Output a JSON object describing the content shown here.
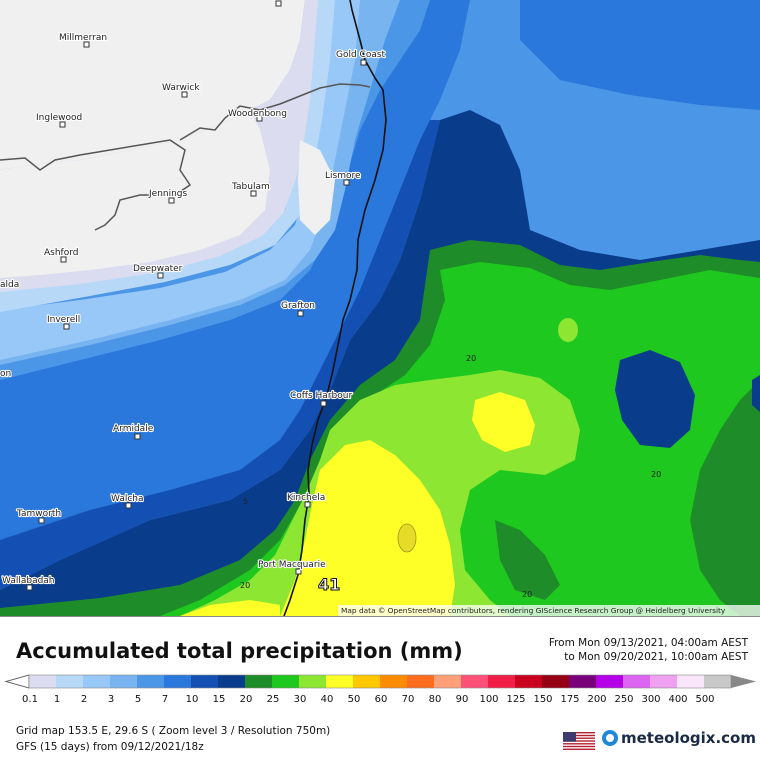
{
  "map": {
    "attribution": "Map data © OpenStreetMap contributors, rendering GIScience Research Group @ Heidelberg University",
    "max_marker": "41",
    "contour_label": "20",
    "contour_label_5": "5",
    "cities": [
      {
        "name": "Millmerran"
      },
      {
        "name": "Warwick"
      },
      {
        "name": "Inglewood"
      },
      {
        "name": "Woodenbong"
      },
      {
        "name": "Gold Coast"
      },
      {
        "name": "Lismore"
      },
      {
        "name": "Tabulam"
      },
      {
        "name": "Jennings"
      },
      {
        "name": "Ashford"
      },
      {
        "name": "Deepwater"
      },
      {
        "name": "Grafton"
      },
      {
        "name": "Inverell"
      },
      {
        "name": "Coffs Harbour"
      },
      {
        "name": "Armidale"
      },
      {
        "name": "Walcha"
      },
      {
        "name": "Kinchela"
      },
      {
        "name": "Tamworth"
      },
      {
        "name": "Port Macquarie"
      },
      {
        "name": "Wallabadah"
      },
      {
        "name": "alda"
      },
      {
        "name": "on"
      }
    ]
  },
  "legend": {
    "title": "Accumulated total precipitation (mm)",
    "period_from": "From Mon 09/13/2021, 04:00am AEST",
    "period_to": "to Mon 09/20/2021, 10:00am AEST",
    "stops": [
      {
        "label": "0.1",
        "color": "#dcdcf0"
      },
      {
        "label": "1",
        "color": "#b8d8f8"
      },
      {
        "label": "2",
        "color": "#98c8f8"
      },
      {
        "label": "3",
        "color": "#78b4f0"
      },
      {
        "label": "5",
        "color": "#4c96e8"
      },
      {
        "label": "7",
        "color": "#2a78dc"
      },
      {
        "label": "10",
        "color": "#1450b4"
      },
      {
        "label": "15",
        "color": "#0a3c8c"
      },
      {
        "label": "20",
        "color": "#1e8c28"
      },
      {
        "label": "25",
        "color": "#1ec81e"
      },
      {
        "label": "30",
        "color": "#8ce632"
      },
      {
        "label": "40",
        "color": "#ffff28"
      },
      {
        "label": "50",
        "color": "#ffc800"
      },
      {
        "label": "60",
        "color": "#ff8c00"
      },
      {
        "label": "70",
        "color": "#ff6e1e"
      },
      {
        "label": "80",
        "color": "#ffa078"
      },
      {
        "label": "90",
        "color": "#ff5078"
      },
      {
        "label": "100",
        "color": "#f01e46"
      },
      {
        "label": "125",
        "color": "#c8001e"
      },
      {
        "label": "150",
        "color": "#960014"
      },
      {
        "label": "175",
        "color": "#7a007a"
      },
      {
        "label": "200",
        "color": "#b400e6"
      },
      {
        "label": "250",
        "color": "#dc64f0"
      },
      {
        "label": "300",
        "color": "#f0a0f0"
      },
      {
        "label": "400",
        "color": "#fae6fa"
      },
      {
        "label": "500",
        "color": "#c8c8c8"
      }
    ]
  },
  "footer": {
    "grid": "Grid map 153.5 E, 29.6 S ( Zoom level 3 / Resolution 750m)",
    "model": "GFS (15 days) from  09/12/2021/18z",
    "brand": "meteologix.com"
  }
}
